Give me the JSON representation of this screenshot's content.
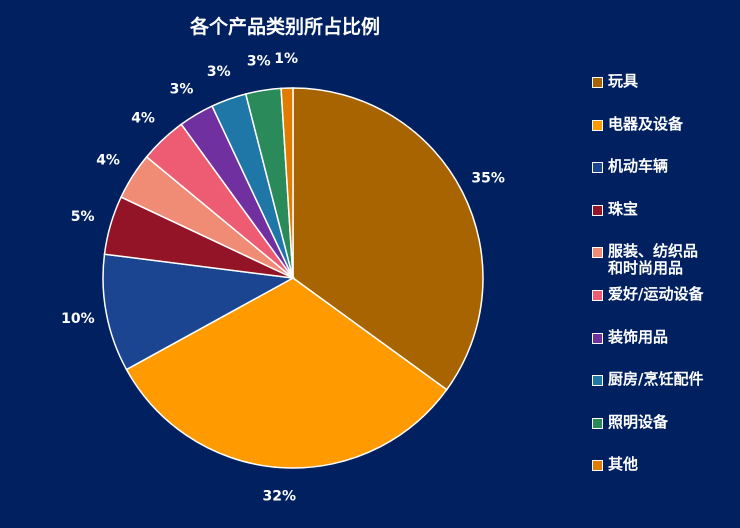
{
  "chart_data": {
    "type": "pie",
    "title": "各个产品类别所占比例",
    "categories": [
      "玩具",
      "电器及设备",
      "机动车辆",
      "珠宝",
      "服装、纺织品\n和时尚用品",
      "爱好/运动设备",
      "装饰用品",
      "厨房/烹饪配件",
      "照明设备",
      "其他"
    ],
    "values": [
      35,
      32,
      10,
      5,
      4,
      4,
      3,
      3,
      3,
      1
    ],
    "labels": [
      "35%",
      "32%",
      "10%",
      "5%",
      "4%",
      "4%",
      "3%",
      "3%",
      "3%",
      "1%"
    ],
    "colors": [
      "#A86400",
      "#FF9A00",
      "#1B4590",
      "#941427",
      "#F08B75",
      "#EE5C74",
      "#7030A0",
      "#1F77A8",
      "#2A8A5A",
      "#E07C00"
    ],
    "legend_position": "right",
    "start_angle": "top, clockwise"
  }
}
